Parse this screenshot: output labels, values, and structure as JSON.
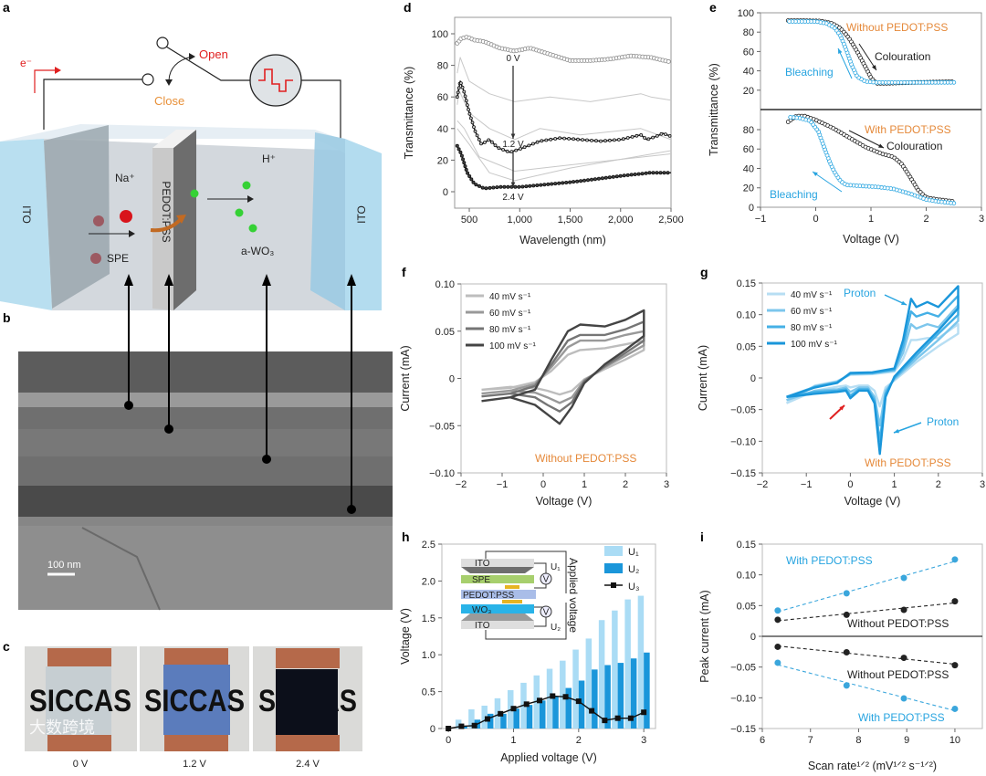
{
  "panel_labels": {
    "a": "a",
    "b": "b",
    "c": "c",
    "d": "d",
    "e": "e",
    "f": "f",
    "g": "g",
    "h": "h",
    "i": "i"
  },
  "diagram": {
    "electron": "e⁻",
    "open": "Open",
    "close": "Close",
    "ito_left": "ITO",
    "ito_right": "ITO",
    "na": "Na⁺",
    "spe": "SPE",
    "pedot": "PEDOT:PSS",
    "h": "H⁺",
    "wo3": "a-WO₃"
  },
  "sem": {
    "scale_bar": "100 nm"
  },
  "photos": {
    "items": [
      {
        "text": "SICCAS",
        "voltage": "0 V",
        "window_color": "#c6ced2"
      },
      {
        "text": "SICCAS",
        "voltage": "1.2 V",
        "window_color": "#5b7cbc"
      },
      {
        "text": "SICCAS",
        "voltage": "2.4 V",
        "window_color": "#0c0f1a"
      }
    ],
    "watermark": "大数跨境"
  },
  "h_inset": {
    "ito_top": "ITO",
    "spe": "SPE",
    "pedot": "PEDOT:PSS",
    "wo3": "WO₃",
    "ito_bottom": "ITO",
    "meter": "V",
    "u1": "U₁",
    "u2": "U₂",
    "applied": "Applied voltage"
  },
  "colors": {
    "orange": "#e5893a",
    "blue": "#27a4e0",
    "red": "#e02020"
  },
  "chart_data": [
    {
      "id": "d",
      "type": "line",
      "xlabel": "Wavelength (nm)",
      "ylabel": "Transmittance (%)",
      "xlim": [
        355,
        2500
      ],
      "ylim": [
        -10.4,
        110.4
      ],
      "xticks": [
        500,
        1000,
        1500,
        2000,
        2500
      ],
      "xtick_labels": [
        "500",
        "1,000",
        "1,500",
        "2,000",
        "2,500"
      ],
      "yticks": [
        0,
        20,
        40,
        60,
        80,
        100
      ],
      "ytick_labels": [
        "0",
        "20",
        "40",
        "60",
        "80",
        "100"
      ],
      "annotations": [
        "0 V",
        "1.2 V",
        "2.4 V"
      ],
      "series": [
        {
          "name": "0 V",
          "color": "#8a8a8a",
          "x": [
            380,
            420,
            480,
            550,
            650,
            800,
            950,
            1100,
            1300,
            1500,
            1700,
            1900,
            2100,
            2300,
            2500
          ],
          "y": [
            94,
            97,
            98,
            96,
            95,
            91,
            89,
            91,
            87,
            83,
            83,
            84,
            86,
            85,
            82
          ]
        },
        {
          "name": "1.2 V",
          "color": "#111111",
          "x": [
            380,
            410,
            450,
            500,
            560,
            620,
            700,
            780,
            900,
            1000,
            1200,
            1400,
            1600,
            1800,
            2000,
            2200,
            2260,
            2350,
            2420,
            2500
          ],
          "y": [
            60,
            70,
            63,
            50,
            38,
            30,
            33,
            28,
            25,
            27,
            32,
            34,
            33,
            32,
            33,
            36,
            33,
            35,
            37,
            35
          ]
        },
        {
          "name": "2.4 V",
          "color": "#111111",
          "x": [
            380,
            420,
            480,
            550,
            650,
            800,
            1000,
            1500,
            2000,
            2300,
            2500
          ],
          "y": [
            29,
            24,
            12,
            5,
            2,
            3,
            3,
            6,
            10,
            12,
            12
          ]
        },
        {
          "color": "#c8c8c8",
          "x": [
            380,
            410,
            500,
            700,
            950,
            1300,
            1700,
            2200,
            2300,
            2500
          ],
          "y": [
            75,
            85,
            70,
            62,
            57,
            60,
            57,
            62,
            60,
            58
          ]
        },
        {
          "color": "#c8c8c8",
          "x": [
            380,
            400,
            500,
            700,
            950,
            1200,
            1600,
            2200,
            2500
          ],
          "y": [
            55,
            64,
            50,
            40,
            33,
            40,
            36,
            40,
            33
          ]
        },
        {
          "color": "#c8c8c8",
          "x": [
            380,
            450,
            600,
            950,
            1500,
            2500
          ],
          "y": [
            45,
            40,
            22,
            13,
            17,
            24
          ]
        },
        {
          "color": "#c8c8c8",
          "x": [
            380,
            500,
            700,
            950,
            1500,
            2500
          ],
          "y": [
            40,
            30,
            12,
            7,
            15,
            26
          ]
        }
      ]
    },
    {
      "id": "e-top",
      "type": "line",
      "title": "Without PEDOT:PSS",
      "xlim": [
        -1,
        3
      ],
      "ylim": [
        0,
        100
      ],
      "yticks": [
        20,
        40,
        60,
        80,
        100
      ],
      "ytick_labels": [
        "20",
        "40",
        "60",
        "80",
        "100"
      ],
      "series": [
        {
          "name": "Colouration",
          "color": "#222222",
          "x": [
            -0.5,
            -0.2,
            0.1,
            0.3,
            0.45,
            0.6,
            0.75,
            0.9,
            1.0,
            1.1,
            1.3,
            1.8,
            2.5
          ],
          "y": [
            92,
            92,
            91.5,
            89,
            84,
            74,
            60,
            44,
            33,
            27,
            27,
            28,
            29
          ]
        },
        {
          "name": "Bleaching",
          "color": "#27a4e0",
          "x": [
            2.5,
            2.0,
            1.5,
            1.1,
            0.9,
            0.75,
            0.65,
            0.55,
            0.45,
            0.35,
            0.2,
            0,
            -0.5
          ],
          "y": [
            28,
            28,
            28,
            28,
            29,
            34,
            46,
            62,
            76,
            84,
            89,
            91,
            91
          ]
        }
      ]
    },
    {
      "id": "e-bottom",
      "type": "line",
      "title": "With PEDOT:PSS",
      "xlabel": "Voltage (V)",
      "ylabel": "Transmittance (%)",
      "xlim": [
        -1,
        3
      ],
      "ylim": [
        0,
        100.7
      ],
      "xticks": [
        -1,
        0,
        1,
        2,
        3
      ],
      "xtick_labels": [
        "−1",
        "0",
        "1",
        "2",
        "3"
      ],
      "yticks": [
        0,
        20,
        40,
        60,
        80
      ],
      "ytick_labels": [
        "0",
        "20",
        "40",
        "60",
        "80"
      ],
      "series": [
        {
          "name": "Colouration",
          "color": "#222222",
          "x": [
            -0.5,
            -0.35,
            -0.2,
            0,
            0.3,
            0.6,
            0.9,
            1.2,
            1.4,
            1.55,
            1.7,
            1.85,
            2.0,
            2.2,
            2.5
          ],
          "y": [
            88,
            94,
            94,
            90,
            82,
            72,
            62,
            55,
            52,
            45,
            32,
            18,
            10,
            8,
            6
          ]
        },
        {
          "name": "Bleaching",
          "color": "#27a4e0",
          "x": [
            2.5,
            2.2,
            2.0,
            1.7,
            1.4,
            1.1,
            0.8,
            0.55,
            0.45,
            0.35,
            0.25,
            0.15,
            0.05,
            -0.1,
            -0.3,
            -0.5
          ],
          "y": [
            4,
            6,
            8,
            14,
            19,
            21,
            22,
            23,
            27,
            35,
            47,
            62,
            78,
            89,
            92,
            93
          ]
        }
      ]
    },
    {
      "id": "f",
      "type": "line",
      "title": "Without PEDOT:PSS",
      "xlabel": "Voltage (V)",
      "ylabel": "Current (mA)",
      "xlim": [
        -2,
        3
      ],
      "ylim": [
        -0.1,
        0.1
      ],
      "xticks": [
        -2,
        -1,
        0,
        1,
        2,
        3
      ],
      "xtick_labels": [
        "−2",
        "−1",
        "0",
        "1",
        "2",
        "3"
      ],
      "yticks": [
        -0.1,
        -0.05,
        0,
        0.05,
        0.1
      ],
      "ytick_labels": [
        "−0.10",
        "−0.05",
        "0",
        "0.05",
        "0.10"
      ],
      "x": [
        -1.5,
        -0.8,
        -0.2,
        0.2,
        0.6,
        0.9,
        1.5,
        2.0,
        2.45,
        2.45,
        2.0,
        1.5,
        1.0,
        0.7,
        0.4,
        0.1,
        -0.2,
        -0.8,
        -1.5
      ],
      "series": [
        {
          "name": "40 mV s⁻¹",
          "color": "#bdbdbd",
          "y": [
            -0.012,
            -0.01,
            -0.004,
            0.008,
            0.025,
            0.03,
            0.032,
            0.036,
            0.04,
            0.03,
            0.02,
            0.01,
            -0.001,
            -0.013,
            -0.017,
            -0.013,
            -0.01,
            -0.009,
            -0.012
          ]
        },
        {
          "name": "60 mV s⁻¹",
          "color": "#999999",
          "y": [
            -0.016,
            -0.013,
            -0.006,
            0.012,
            0.033,
            0.04,
            0.04,
            0.046,
            0.05,
            0.035,
            0.024,
            0.012,
            -0.002,
            -0.02,
            -0.026,
            -0.02,
            -0.015,
            -0.013,
            -0.016
          ]
        },
        {
          "name": "80 mV s⁻¹",
          "color": "#757575",
          "y": [
            -0.019,
            -0.016,
            -0.008,
            0.015,
            0.04,
            0.046,
            0.046,
            0.052,
            0.06,
            0.04,
            0.027,
            0.013,
            -0.003,
            -0.025,
            -0.035,
            -0.028,
            -0.02,
            -0.016,
            -0.019
          ]
        },
        {
          "name": "100 mV s⁻¹",
          "color": "#444444",
          "y": [
            -0.024,
            -0.02,
            -0.012,
            0.02,
            0.05,
            0.057,
            0.055,
            0.062,
            0.072,
            0.045,
            0.03,
            0.015,
            -0.005,
            -0.03,
            -0.048,
            -0.038,
            -0.028,
            -0.02,
            -0.024
          ]
        }
      ]
    },
    {
      "id": "g",
      "type": "line",
      "title": "With PEDOT:PSS",
      "xlabel": "Voltage (V)",
      "ylabel": "Current (mA)",
      "xlim": [
        -2,
        3
      ],
      "ylim": [
        -0.15,
        0.15
      ],
      "xticks": [
        -2,
        -1,
        0,
        1,
        2,
        3
      ],
      "xtick_labels": [
        "−2",
        "−1",
        "0",
        "1",
        "2",
        "3"
      ],
      "yticks": [
        -0.15,
        -0.1,
        -0.05,
        0,
        0.05,
        0.1,
        0.15
      ],
      "ytick_labels": [
        "−0.15",
        "−0.10",
        "−0.05",
        "0",
        "0.05",
        "0.10",
        "0.15"
      ],
      "annotations": [
        "Proton",
        "Proton"
      ],
      "x": [
        -1.45,
        -0.8,
        -0.3,
        0,
        0.5,
        1.0,
        1.2,
        1.38,
        1.5,
        1.75,
        2.0,
        2.45,
        2.45,
        2.0,
        1.5,
        1.0,
        0.8,
        0.67,
        0.55,
        0.4,
        0.2,
        0,
        -0.1,
        -0.3,
        -0.8,
        -1.45
      ],
      "series": [
        {
          "name": "40 mV s⁻¹",
          "color": "#b7def3",
          "y": [
            -0.04,
            -0.012,
            -0.005,
            0.005,
            0.006,
            0.01,
            0.03,
            0.06,
            0.06,
            0.063,
            0.063,
            0.085,
            0.07,
            0.05,
            0.025,
            -0.004,
            -0.015,
            -0.045,
            -0.02,
            -0.012,
            -0.012,
            -0.015,
            -0.012,
            -0.014,
            -0.02,
            -0.04
          ]
        },
        {
          "name": "60 mV s⁻¹",
          "color": "#7cc6ec",
          "y": [
            -0.035,
            -0.013,
            -0.006,
            0.006,
            0.007,
            0.012,
            0.04,
            0.085,
            0.078,
            0.085,
            0.08,
            0.115,
            0.09,
            0.06,
            0.03,
            -0.002,
            -0.02,
            -0.075,
            -0.03,
            -0.015,
            -0.015,
            -0.022,
            -0.015,
            -0.018,
            -0.02,
            -0.035
          ]
        },
        {
          "name": "80 mV s⁻¹",
          "color": "#45b0e6",
          "y": [
            -0.03,
            -0.014,
            -0.007,
            0.007,
            0.008,
            0.013,
            0.05,
            0.105,
            0.097,
            0.103,
            0.097,
            0.13,
            0.1,
            0.07,
            0.035,
            0.0,
            -0.025,
            -0.1,
            -0.035,
            -0.018,
            -0.018,
            -0.028,
            -0.018,
            -0.02,
            -0.022,
            -0.03
          ]
        },
        {
          "name": "100 mV s⁻¹",
          "color": "#1a96da",
          "y": [
            -0.03,
            -0.015,
            -0.008,
            0.008,
            0.009,
            0.015,
            0.06,
            0.125,
            0.112,
            0.12,
            0.112,
            0.145,
            0.11,
            0.075,
            0.04,
            0.002,
            -0.03,
            -0.12,
            -0.04,
            -0.02,
            -0.02,
            -0.032,
            -0.02,
            -0.022,
            -0.025,
            -0.03
          ]
        }
      ]
    },
    {
      "id": "h",
      "type": "bar",
      "xlabel": "Applied voltage (V)",
      "ylabel": "Voltage (V)",
      "xlim": [
        -0.1,
        3.18
      ],
      "ylim": [
        0,
        2.5
      ],
      "xticks": [
        0,
        1,
        2,
        3
      ],
      "xtick_labels": [
        "0",
        "1",
        "2",
        "3"
      ],
      "yticks": [
        0,
        0.5,
        1,
        1.5,
        2,
        2.5
      ],
      "ytick_labels": [
        "0",
        "0.5",
        "1.0",
        "1.5",
        "2.0",
        "2.5"
      ],
      "x": [
        0,
        0.2,
        0.4,
        0.6,
        0.8,
        1.0,
        1.2,
        1.4,
        1.6,
        1.8,
        2.0,
        2.2,
        2.4,
        2.6,
        2.8,
        3.0
      ],
      "series": [
        {
          "name": "U₁",
          "type": "bar",
          "color": "#aadcf5",
          "values": [
            0,
            0.12,
            0.26,
            0.31,
            0.41,
            0.52,
            0.62,
            0.72,
            0.81,
            0.92,
            1.07,
            1.22,
            1.47,
            1.6,
            1.75,
            1.8
          ]
        },
        {
          "name": "U₂",
          "type": "bar",
          "color": "#1a96da",
          "values": [
            0,
            0.03,
            0.12,
            0.2,
            0.2,
            0.27,
            0.32,
            0.38,
            0.44,
            0.55,
            0.65,
            0.8,
            0.86,
            0.89,
            0.95,
            1.03
          ]
        },
        {
          "name": "U₃",
          "type": "line",
          "color": "#111111",
          "values": [
            0,
            0.03,
            0.04,
            0.13,
            0.2,
            0.27,
            0.33,
            0.38,
            0.44,
            0.43,
            0.37,
            0.24,
            0.11,
            0.14,
            0.14,
            0.22
          ]
        }
      ]
    },
    {
      "id": "i",
      "type": "scatter",
      "xlabel": "Scan rate¹ᐟ² (mV¹ᐟ² s⁻¹ᐟ²)",
      "ylabel": "Peak current (mA)",
      "xlim": [
        6,
        10.57
      ],
      "ylim": [
        -0.15,
        0.15
      ],
      "xticks": [
        6,
        7,
        8,
        9,
        10
      ],
      "xtick_labels": [
        "6",
        "7",
        "8",
        "9",
        "10"
      ],
      "yticks": [
        -0.15,
        -0.1,
        -0.05,
        0,
        0.05,
        0.1,
        0.15
      ],
      "ytick_labels": [
        "−0.15",
        "−0.10",
        "−0.05",
        "0",
        "0.05",
        "0.10",
        "0.15"
      ],
      "x": [
        6.32,
        7.75,
        8.94,
        10
      ],
      "series": [
        {
          "name": "With PEDOT:PSS",
          "color": "#3aa6dc",
          "y": [
            0.042,
            0.07,
            0.095,
            0.125
          ]
        },
        {
          "name": "Without PEDOT:PSS",
          "color": "#222222",
          "y": [
            0.027,
            0.035,
            0.043,
            0.057
          ]
        },
        {
          "name": "Without PEDOT:PSS",
          "color": "#222222",
          "y": [
            -0.017,
            -0.026,
            -0.035,
            -0.047
          ]
        },
        {
          "name": "With PEDOT:PSS",
          "color": "#3aa6dc",
          "y": [
            -0.043,
            -0.08,
            -0.101,
            -0.118
          ]
        }
      ]
    }
  ]
}
